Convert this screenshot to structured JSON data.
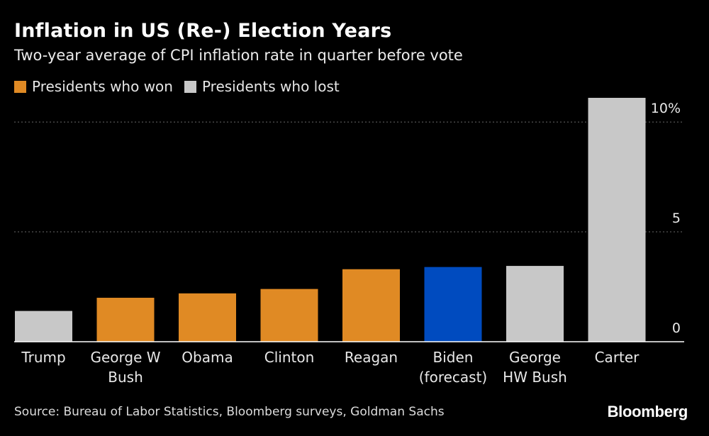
{
  "header": {
    "title": "Inflation in US (Re-) Election Years",
    "subtitle": "Two-year average of CPI inflation rate in quarter before vote"
  },
  "legend": [
    {
      "label": "Presidents who won",
      "color": "#e08a24"
    },
    {
      "label": "Presidents who lost",
      "color": "#c8c8c8"
    }
  ],
  "chart_data": {
    "type": "bar",
    "categories": [
      [
        "Trump"
      ],
      [
        "George W",
        "Bush"
      ],
      [
        "Obama"
      ],
      [
        "Clinton"
      ],
      [
        "Reagan"
      ],
      [
        "Biden",
        "(forecast)"
      ],
      [
        "George",
        "HW Bush"
      ],
      [
        "Carter"
      ]
    ],
    "values": [
      1.4,
      2.0,
      2.2,
      2.4,
      3.3,
      3.4,
      3.45,
      11.1
    ],
    "bar_colors": [
      "#c8c8c8",
      "#e08a24",
      "#e08a24",
      "#e08a24",
      "#e08a24",
      "#004bbf",
      "#c8c8c8",
      "#c8c8c8"
    ],
    "yticks": [
      0,
      5,
      10
    ],
    "ytick_labels": [
      "0",
      "5",
      "10%"
    ],
    "ylim": [
      0,
      11.1
    ],
    "grid": true,
    "axis_side": "right"
  },
  "footer": {
    "source": "Source: Bureau of Labor Statistics, Bloomberg surveys, Goldman Sachs",
    "brand": "Bloomberg"
  }
}
